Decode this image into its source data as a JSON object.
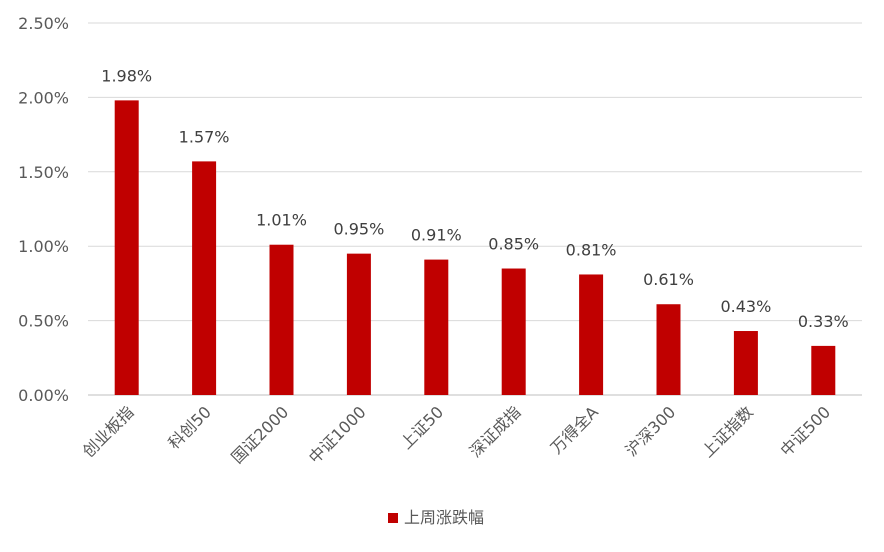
{
  "chart_data": {
    "type": "bar",
    "categories": [
      "创业板指",
      "科创50",
      "国证2000",
      "中证1000",
      "上证50",
      "深证成指",
      "万得全A",
      "沪深300",
      "上证指数",
      "中证500"
    ],
    "series": [
      {
        "name": "上周涨跌幅",
        "values": [
          1.98,
          1.57,
          1.01,
          0.95,
          0.91,
          0.85,
          0.81,
          0.61,
          0.43,
          0.33
        ],
        "labels": [
          "1.98%",
          "1.57%",
          "1.01%",
          "0.95%",
          "0.91%",
          "0.85%",
          "0.81%",
          "0.61%",
          "0.43%",
          "0.33%"
        ]
      }
    ],
    "yticks": [
      0,
      0.5,
      1.0,
      1.5,
      2.0,
      2.5
    ],
    "ytick_labels": [
      "0.00%",
      "0.50%",
      "1.00%",
      "1.50%",
      "2.00%",
      "2.50%"
    ],
    "ylim": [
      0,
      2.5
    ],
    "grid": true,
    "legend_position": "bottom",
    "bar_color": "#C00000"
  }
}
